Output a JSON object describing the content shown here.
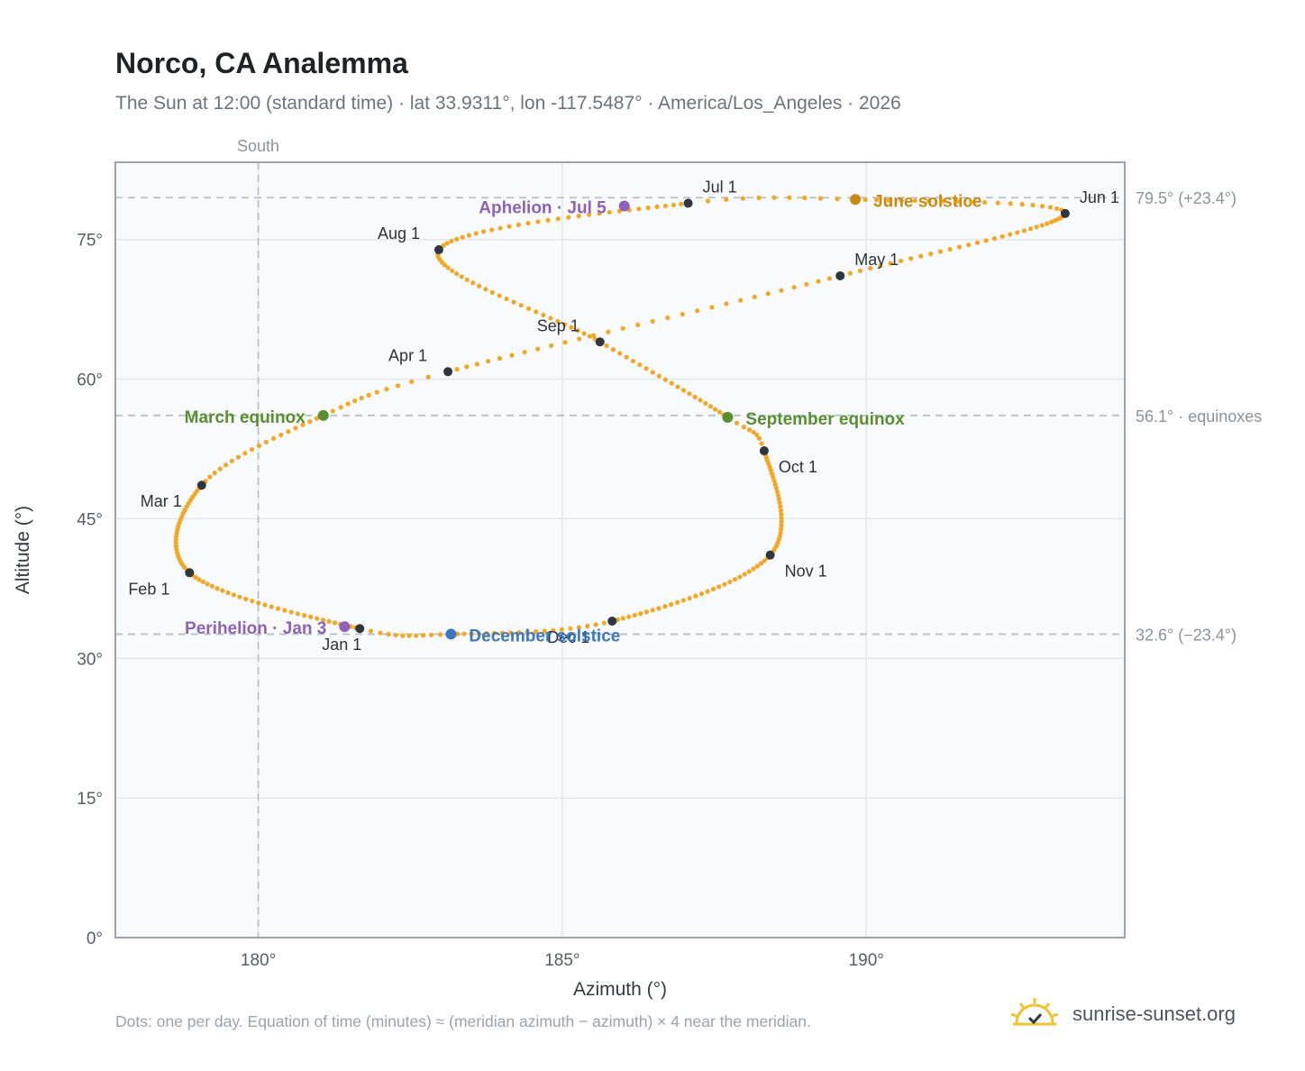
{
  "title": "Norco, CA Analemma",
  "subtitle": "The Sun at 12:00 (standard time) · lat 33.9311°, lon -117.5487° · America/Los_Angeles · 2026",
  "footnote": "Dots: one per day. Equation of time (minutes) ≈ (meridian azimuth − azimuth) × 4 near the meridian.",
  "brand": {
    "name": "sunrise-sunset.org",
    "logo_icon": "sun-check-icon"
  },
  "colors": {
    "path": "#f5a623",
    "month_marker": "#2f3640",
    "june_solstice": "#cc8a0e",
    "december_solstice": "#3a78c2",
    "equinox": "#5a8f2f",
    "perihelion_aphelion": "#8e62b8",
    "frame": "#9aa3b0",
    "plot_bg": "#f8fafc",
    "grid": "#e3e7ec",
    "ref_line": "#b8c2cc"
  },
  "chart_data": {
    "type": "scatter",
    "xlabel": "Azimuth (°)",
    "ylabel": "Altitude (°)",
    "xlim": [
      177.65,
      194.25
    ],
    "ylim": [
      0,
      83.3
    ],
    "x_ticks": [
      180,
      185,
      190
    ],
    "x_tick_labels": [
      "180°",
      "185°",
      "190°"
    ],
    "y_ticks": [
      0,
      15,
      30,
      45,
      60,
      75
    ],
    "y_tick_labels": [
      "0°",
      "15°",
      "30°",
      "45°",
      "60°",
      "75°"
    ],
    "grid": true,
    "reference_lines": [
      {
        "axis": "x",
        "value": 180,
        "label": "South"
      },
      {
        "axis": "y",
        "value": 79.5,
        "label": "79.5° (+23.4°)"
      },
      {
        "axis": "y",
        "value": 56.1,
        "label": "56.1° · equinoxes"
      },
      {
        "axis": "y",
        "value": 32.6,
        "label": "32.6° (−23.4°)"
      }
    ],
    "month_markers": [
      {
        "label": "Jan 1",
        "az": 181.67,
        "alt": 33.2
      },
      {
        "label": "Feb 1",
        "az": 178.87,
        "alt": 39.2
      },
      {
        "label": "Mar 1",
        "az": 179.07,
        "alt": 48.6
      },
      {
        "label": "Apr 1",
        "az": 183.12,
        "alt": 60.8
      },
      {
        "label": "May 1",
        "az": 189.57,
        "alt": 71.1
      },
      {
        "label": "Jun 1",
        "az": 193.27,
        "alt": 77.8
      },
      {
        "label": "Jul 1",
        "az": 187.07,
        "alt": 78.9
      },
      {
        "label": "Aug 1",
        "az": 182.97,
        "alt": 73.9
      },
      {
        "label": "Sep 1",
        "az": 185.62,
        "alt": 64.0
      },
      {
        "label": "Oct 1",
        "az": 188.32,
        "alt": 52.3
      },
      {
        "label": "Nov 1",
        "az": 188.42,
        "alt": 41.1
      },
      {
        "label": "Dec 1",
        "az": 185.82,
        "alt": 34.0
      }
    ],
    "events": [
      {
        "label": "June solstice",
        "az": 189.82,
        "alt": 79.3,
        "color_key": "june_solstice"
      },
      {
        "label": "December solstice",
        "az": 183.17,
        "alt": 32.6,
        "color_key": "december_solstice"
      },
      {
        "label": "March equinox",
        "az": 181.07,
        "alt": 56.1,
        "color_key": "equinox"
      },
      {
        "label": "September equinox",
        "az": 187.72,
        "alt": 55.9,
        "color_key": "equinox"
      },
      {
        "label": "Perihelion · Jan 3",
        "az": 181.42,
        "alt": 33.4,
        "color_key": "perihelion_aphelion"
      },
      {
        "label": "Aphelion · Jul 5",
        "az": 186.02,
        "alt": 78.6,
        "color_key": "perihelion_aphelion"
      }
    ],
    "path_knots": [
      {
        "day": 1,
        "az": 181.67,
        "alt": 33.2
      },
      {
        "day": 32,
        "az": 178.87,
        "alt": 39.2
      },
      {
        "day": 60,
        "az": 179.07,
        "alt": 48.6
      },
      {
        "day": 79,
        "az": 181.07,
        "alt": 56.1
      },
      {
        "day": 91,
        "az": 183.12,
        "alt": 60.8
      },
      {
        "day": 121,
        "az": 189.57,
        "alt": 71.1
      },
      {
        "day": 152,
        "az": 193.27,
        "alt": 77.8
      },
      {
        "day": 172,
        "az": 189.82,
        "alt": 79.3
      },
      {
        "day": 182,
        "az": 187.07,
        "alt": 78.9
      },
      {
        "day": 213,
        "az": 182.97,
        "alt": 73.9
      },
      {
        "day": 244,
        "az": 185.62,
        "alt": 64.0
      },
      {
        "day": 266,
        "az": 187.72,
        "alt": 55.9
      },
      {
        "day": 274,
        "az": 188.32,
        "alt": 52.3
      },
      {
        "day": 305,
        "az": 188.42,
        "alt": 41.1
      },
      {
        "day": 335,
        "az": 185.82,
        "alt": 34.0
      },
      {
        "day": 355,
        "az": 183.17,
        "alt": 32.6
      },
      {
        "day": 366,
        "az": 181.67,
        "alt": 33.2
      }
    ]
  }
}
